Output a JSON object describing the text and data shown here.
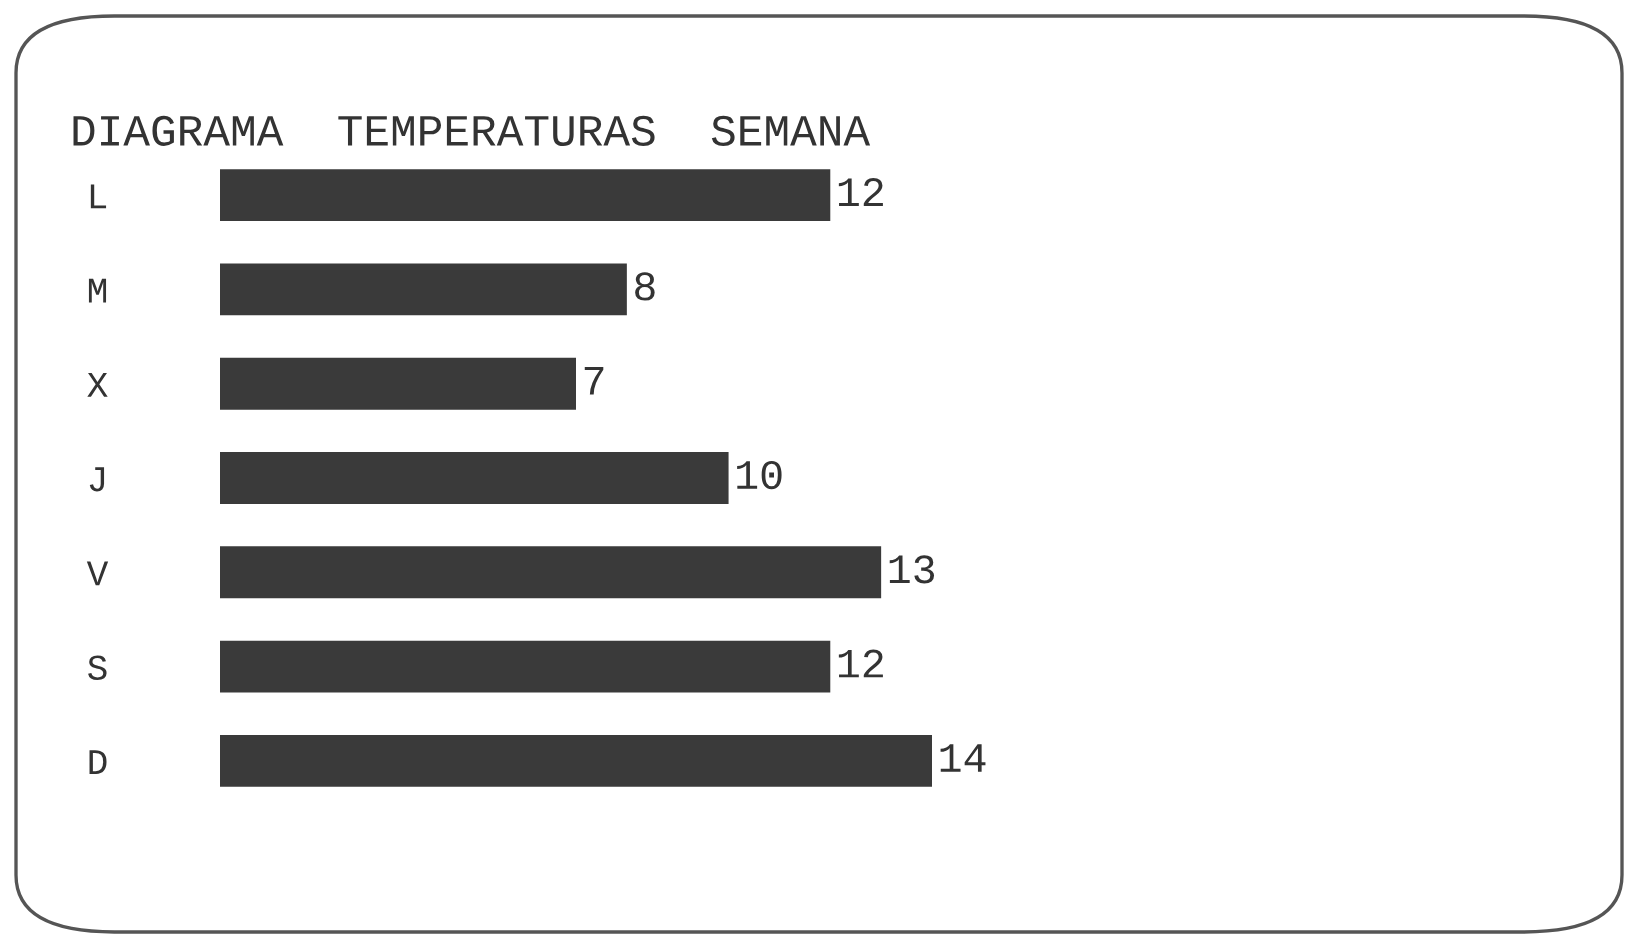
{
  "chart_data": {
    "type": "bar",
    "orientation": "horizontal",
    "title": "DIAGRAMA TEMPERATURAS SEMANA",
    "categories": [
      "L",
      "M",
      "X",
      "J",
      "V",
      "S",
      "D"
    ],
    "values": [
      12,
      8,
      7,
      10,
      13,
      12,
      14
    ],
    "color": "#3a3a3a",
    "data_labels": true,
    "grid": false,
    "legend": false
  }
}
